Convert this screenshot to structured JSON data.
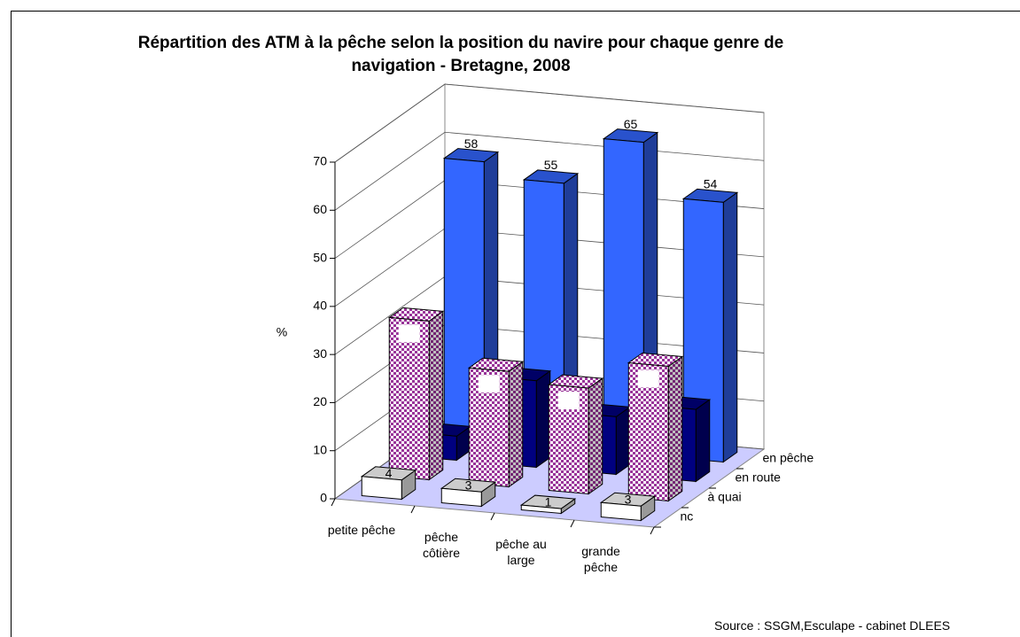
{
  "chart_data": {
    "type": "bar3d",
    "title": "Répartition des ATM à la pêche selon la position du navire pour chaque genre de navigation - Bretagne, 2008",
    "ylabel": "%",
    "source": "Source : SSGM,Esculape - cabinet DLEES",
    "categories": [
      "petite pêche",
      "pêche côtière",
      "pêche au large",
      "grande pêche"
    ],
    "series": [
      {
        "name": "nc",
        "color": "#ffffff",
        "values": [
          4,
          3,
          1,
          3
        ]
      },
      {
        "name": "à quai",
        "color": "#993399",
        "pattern": "checker",
        "values": [
          33,
          24,
          22,
          28
        ]
      },
      {
        "name": "en route",
        "color": "#000080",
        "values": [
          5,
          18,
          12,
          15
        ]
      },
      {
        "name": "en pêche",
        "color": "#3366ff",
        "values": [
          58,
          55,
          65,
          54
        ]
      }
    ],
    "ylim": [
      0,
      70
    ],
    "yticks": [
      0,
      10,
      20,
      30,
      40,
      50,
      60,
      70
    ],
    "grid": true,
    "floor_color": "#ccccff"
  }
}
